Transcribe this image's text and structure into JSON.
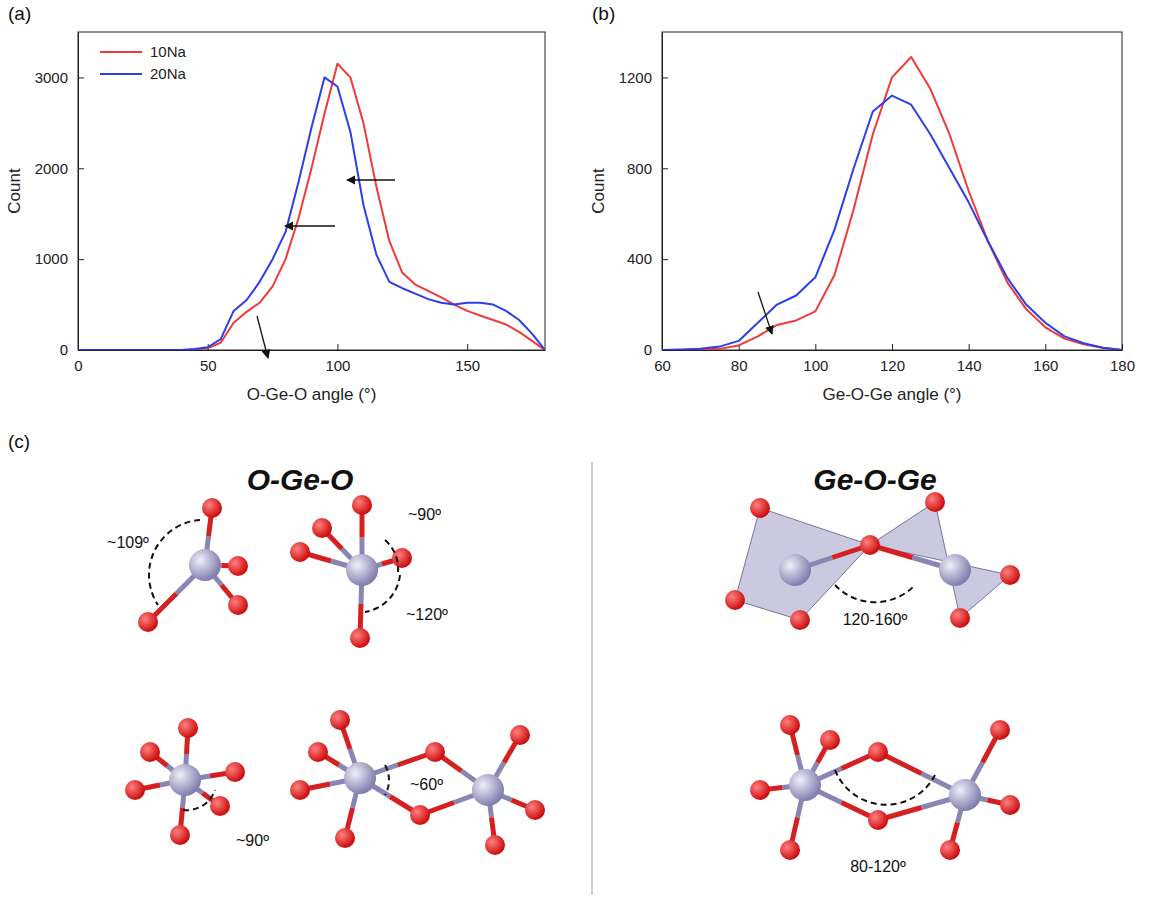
{
  "chart_data": [
    {
      "type": "line",
      "title": "(a)",
      "x_label": "O-Ge-O angle (°)",
      "y_label": "Count",
      "x": [
        0,
        5,
        10,
        15,
        20,
        25,
        30,
        35,
        40,
        45,
        50,
        55,
        60,
        65,
        70,
        75,
        80,
        85,
        90,
        95,
        100,
        105,
        110,
        115,
        120,
        125,
        130,
        135,
        140,
        145,
        150,
        155,
        160,
        165,
        170,
        175,
        180
      ],
      "series": [
        {
          "name": "10Na",
          "color": "#f03a3a",
          "values": [
            0,
            0,
            0,
            0,
            0,
            0,
            0,
            0,
            0,
            5,
            20,
            80,
            300,
            420,
            520,
            700,
            1000,
            1450,
            2000,
            2600,
            3150,
            3000,
            2500,
            1800,
            1200,
            850,
            720,
            650,
            580,
            500,
            430,
            380,
            330,
            280,
            200,
            100,
            0
          ]
        },
        {
          "name": "20Na",
          "color": "#2e3ee6",
          "values": [
            0,
            0,
            0,
            0,
            0,
            0,
            0,
            0,
            0,
            10,
            30,
            120,
            430,
            550,
            750,
            1000,
            1300,
            1850,
            2450,
            3000,
            2900,
            2400,
            1600,
            1050,
            750,
            680,
            620,
            560,
            520,
            500,
            520,
            520,
            500,
            430,
            330,
            180,
            0
          ]
        }
      ],
      "xlim": [
        0,
        180
      ],
      "xticks": [
        0,
        50,
        100,
        150
      ],
      "ylim": [
        0,
        3500
      ],
      "yticks": [
        0,
        1000,
        2000,
        3000
      ],
      "legend": "upper left",
      "grid": false
    },
    {
      "type": "line",
      "title": "(b)",
      "x_label": "Ge-O-Ge angle (°)",
      "y_label": "Count",
      "x": [
        60,
        65,
        70,
        75,
        80,
        85,
        90,
        95,
        100,
        105,
        110,
        115,
        120,
        125,
        130,
        135,
        140,
        145,
        150,
        155,
        160,
        165,
        170,
        175,
        180
      ],
      "series": [
        {
          "color": "#f03a3a",
          "values": [
            0,
            0,
            2,
            5,
            20,
            60,
            110,
            130,
            170,
            330,
            620,
            950,
            1200,
            1290,
            1150,
            950,
            700,
            480,
            300,
            180,
            100,
            50,
            25,
            10,
            0
          ]
        },
        {
          "color": "#2e3ee6",
          "values": [
            0,
            2,
            5,
            15,
            40,
            120,
            200,
            240,
            320,
            530,
            800,
            1050,
            1120,
            1080,
            950,
            800,
            650,
            480,
            320,
            200,
            120,
            60,
            30,
            10,
            0
          ]
        }
      ],
      "xlim": [
        60,
        180
      ],
      "xticks": [
        60,
        80,
        100,
        120,
        140,
        160,
        180
      ],
      "ylim": [
        0,
        1400
      ],
      "yticks": [
        0,
        400,
        800,
        1200
      ],
      "grid": false
    }
  ],
  "panel_c": {
    "label": "(c)",
    "sections": [
      {
        "title": "O-Ge-O",
        "angles": [
          "~109º",
          "~90º",
          "~120º",
          "~90º",
          "~60º"
        ]
      },
      {
        "title": "Ge-O-Ge",
        "angles": [
          "120-160º",
          "80-120º"
        ]
      }
    ]
  }
}
